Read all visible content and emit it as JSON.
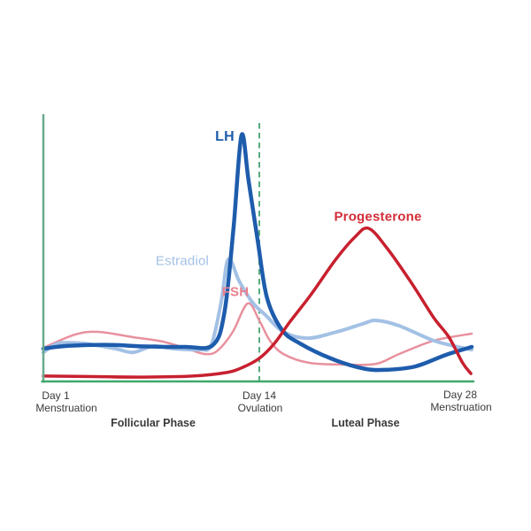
{
  "chart_data": {
    "type": "line",
    "title": "",
    "x_axis": {
      "range_days": [
        1,
        28
      ],
      "ticks": [
        {
          "day": 1,
          "label": "Day 1",
          "sublabel": "Menstruation"
        },
        {
          "day": 14,
          "label": "Day 14",
          "sublabel": "Ovulation"
        },
        {
          "day": 28,
          "label": "Day 28",
          "sublabel": "Menstruation"
        }
      ]
    },
    "y_axis": {
      "label": "",
      "range": [
        0,
        100
      ],
      "unit": "relative hormone level",
      "gridlines": false
    },
    "phases": [
      {
        "label": "Follicular Phase",
        "day_range": [
          1,
          14
        ]
      },
      {
        "label": "Luteal Phase",
        "day_range": [
          14,
          28
        ]
      }
    ],
    "ovulation_marker": {
      "day": 14,
      "style": "dashed"
    },
    "colors": {
      "axis_vertical": "#68aa8d",
      "axis_horizontal": "#3fa86a",
      "ovulation_line": "#57ab7d",
      "text": "#3b3b3b"
    },
    "series": [
      {
        "name": "FSH",
        "color": "#e8919e",
        "width": 2.5,
        "points": [
          [
            1,
            13.8
          ],
          [
            2.9,
            19.1
          ],
          [
            4.3,
            20.2
          ],
          [
            6.4,
            18.1
          ],
          [
            8.2,
            16.3
          ],
          [
            9.8,
            13.1
          ],
          [
            10.8,
            11.3
          ],
          [
            11.5,
            12.8
          ],
          [
            12.4,
            20.2
          ],
          [
            13.3,
            31.6
          ],
          [
            14,
            24.8
          ],
          [
            14.7,
            16.7
          ],
          [
            15.6,
            11.3
          ],
          [
            17.3,
            7.8
          ],
          [
            19.7,
            7.1
          ],
          [
            21.7,
            7.4
          ],
          [
            23.2,
            11.3
          ],
          [
            25.5,
            16.7
          ],
          [
            28,
            19.5
          ]
        ]
      },
      {
        "name": "Estradiol",
        "color": "#a3c1e5",
        "width": 4,
        "points": [
          [
            1,
            12
          ],
          [
            1.9,
            15.6
          ],
          [
            3.4,
            15.6
          ],
          [
            5.3,
            13.5
          ],
          [
            6.4,
            12
          ],
          [
            7.6,
            14.5
          ],
          [
            8.8,
            13.5
          ],
          [
            10.4,
            13.1
          ],
          [
            11.1,
            14.9
          ],
          [
            11.7,
            32
          ],
          [
            12.13,
            49.3
          ],
          [
            12.8,
            40.4
          ],
          [
            13.6,
            31.9
          ],
          [
            14.4,
            27
          ],
          [
            15.6,
            20.2
          ],
          [
            17.2,
            17.7
          ],
          [
            19.1,
            20.2
          ],
          [
            20.8,
            23.4
          ],
          [
            21.7,
            24.8
          ],
          [
            23.2,
            22.7
          ],
          [
            25.5,
            16.7
          ],
          [
            27.4,
            13.8
          ],
          [
            28,
            13.1
          ]
        ]
      },
      {
        "name": "LH",
        "color": "#1e5cac",
        "width": 4.5,
        "points": [
          [
            1,
            13.5
          ],
          [
            2.5,
            14.6
          ],
          [
            5,
            15
          ],
          [
            7,
            14.4
          ],
          [
            9.5,
            14.2
          ],
          [
            11.2,
            14.9
          ],
          [
            11.9,
            28
          ],
          [
            12.45,
            62
          ],
          [
            12.93,
            99
          ],
          [
            13.35,
            81
          ],
          [
            13.9,
            57
          ],
          [
            14.5,
            34
          ],
          [
            15.5,
            21
          ],
          [
            16.7,
            15.5
          ],
          [
            18.7,
            9.6
          ],
          [
            20.8,
            5.6
          ],
          [
            22.3,
            5
          ],
          [
            24.3,
            6.4
          ],
          [
            26.3,
            11
          ],
          [
            28,
            14.2
          ]
        ]
      },
      {
        "name": "Progesterone",
        "color": "#c8202f",
        "width": 3.5,
        "points": [
          [
            1,
            2.5
          ],
          [
            4,
            2.3
          ],
          [
            7,
            2.1
          ],
          [
            10,
            2.5
          ],
          [
            12,
            3.9
          ],
          [
            13,
            6
          ],
          [
            14,
            9.6
          ],
          [
            15,
            15.6
          ],
          [
            16,
            24.1
          ],
          [
            17.4,
            35.1
          ],
          [
            19,
            48.9
          ],
          [
            20.3,
            58.2
          ],
          [
            21.2,
            61.7
          ],
          [
            22.4,
            53.9
          ],
          [
            24,
            40.1
          ],
          [
            25.5,
            25.9
          ],
          [
            26.5,
            18.1
          ],
          [
            27.4,
            7.8
          ],
          [
            27.95,
            3.5
          ]
        ]
      }
    ],
    "layout": {
      "plot": {
        "x_day1": 49,
        "x_day14": 293,
        "x_day28": 533,
        "y_level0": 432,
        "y_level100": 150,
        "axis_top_y": 130
      }
    }
  },
  "curve_labels": {
    "lh": "LH",
    "estradiol": "Estradiol",
    "fsh": "FSH",
    "progesterone": "Progesterone"
  }
}
